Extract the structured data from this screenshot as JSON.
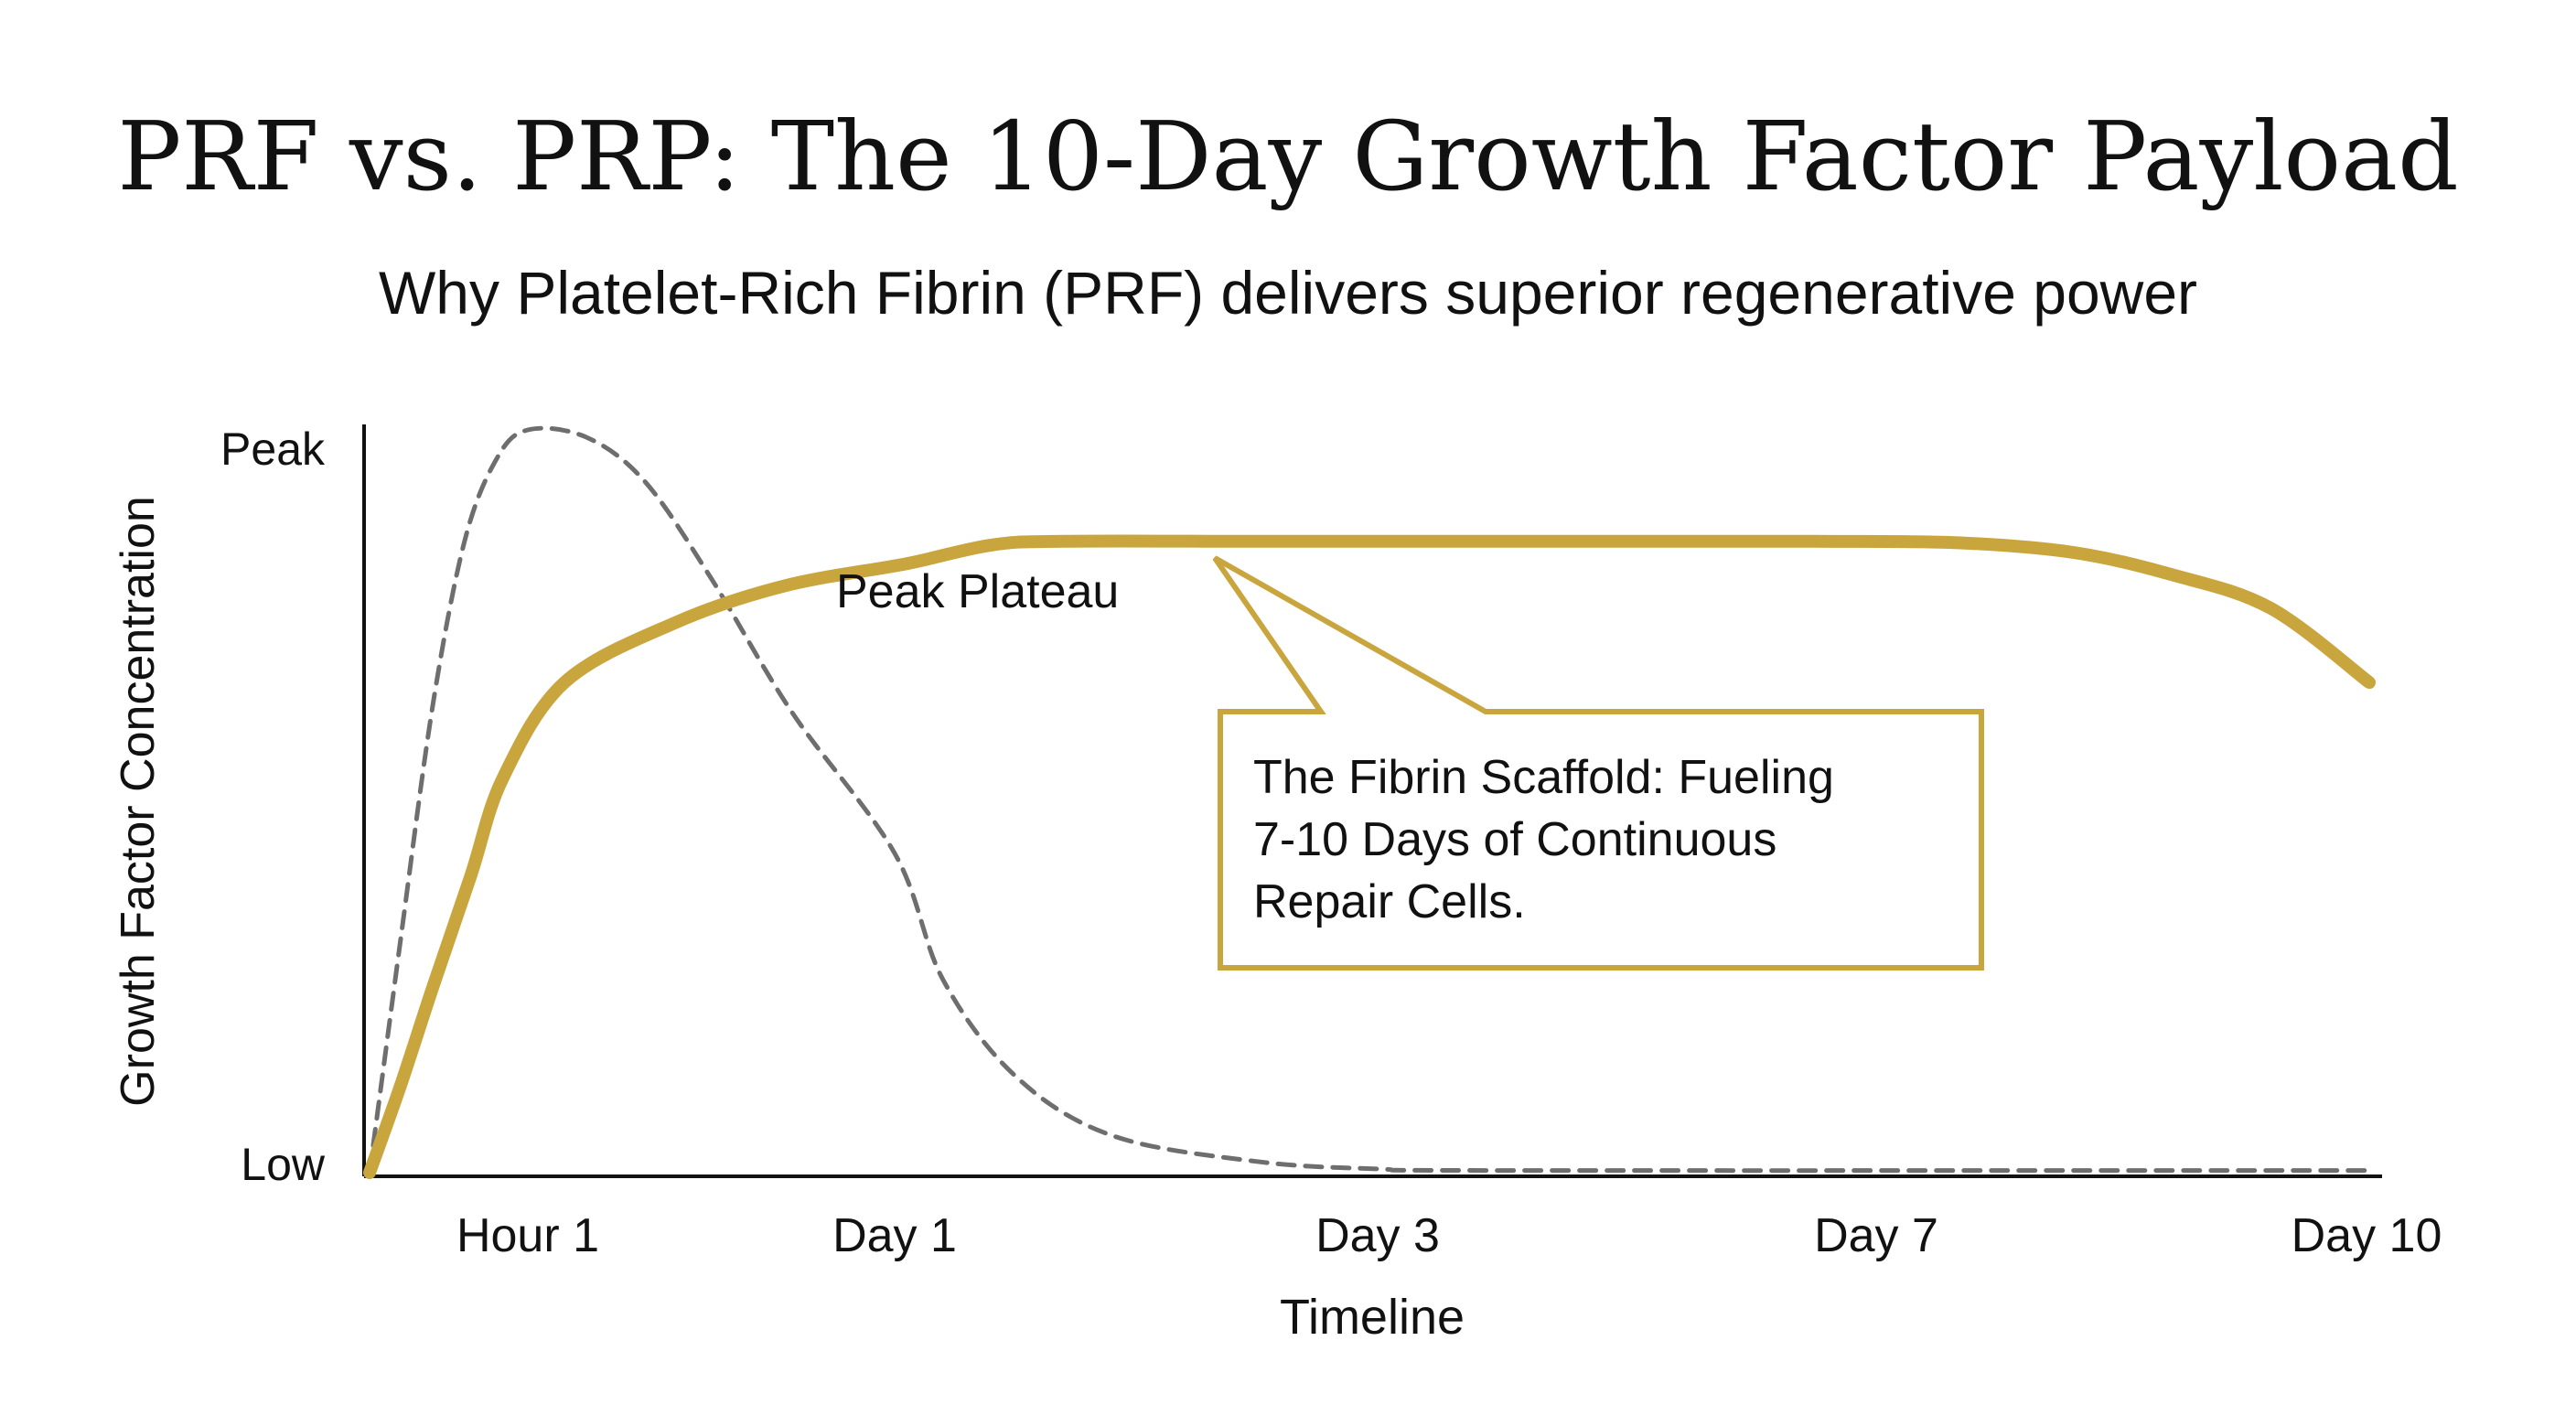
{
  "title": "PRF vs. PRP: The 10-Day Growth Factor Payload",
  "subtitle": "Why Platelet-Rich Fibrin (PRF) delivers superior regenerative power",
  "colors": {
    "prf": "#c9a53e",
    "prp": "#6e6e6e",
    "axis": "#111111",
    "text": "#111111"
  },
  "chart_data": {
    "type": "line",
    "title": "PRF vs. PRP: The 10-Day Growth Factor Payload",
    "subtitle": "Why Platelet-Rich Fibrin (PRF) delivers superior regenerative power",
    "xlabel": "Timeline",
    "ylabel": "Growth Factor Concentration",
    "x_ticks": [
      "Hour 1",
      "Day 1",
      "Day 3",
      "Day 7",
      "Day 10"
    ],
    "y_ticks": [
      "Low",
      "Peak"
    ],
    "ylim": [
      0,
      100
    ],
    "grid": false,
    "legend": "none",
    "series": [
      {
        "style": "solid",
        "color": "#c9a53e",
        "points": [
          [
            0,
            0
          ],
          [
            0.1,
            12
          ],
          [
            0.2,
            25
          ],
          [
            0.32,
            40
          ],
          [
            0.42,
            53
          ],
          [
            0.55,
            66
          ],
          [
            0.7,
            74
          ],
          [
            0.85,
            79
          ],
          [
            1.05,
            82
          ],
          [
            1.4,
            84.5
          ],
          [
            1.7,
            85
          ],
          [
            2.5,
            85
          ],
          [
            3.5,
            85
          ],
          [
            5,
            85
          ],
          [
            6.5,
            85
          ],
          [
            7.5,
            84.8
          ],
          [
            8.2,
            83.5
          ],
          [
            8.8,
            80.5
          ],
          [
            9.4,
            76
          ],
          [
            10,
            66
          ]
        ]
      },
      {
        "style": "dashed",
        "color": "#6e6e6e",
        "points": [
          [
            0,
            0
          ],
          [
            0.1,
            32
          ],
          [
            0.2,
            63
          ],
          [
            0.3,
            85
          ],
          [
            0.4,
            96
          ],
          [
            0.5,
            100
          ],
          [
            0.58,
            99
          ],
          [
            0.66,
            93
          ],
          [
            0.75,
            80
          ],
          [
            0.86,
            62
          ],
          [
            1,
            43
          ],
          [
            1.2,
            26
          ],
          [
            1.5,
            13
          ],
          [
            1.9,
            5
          ],
          [
            2.5,
            1.5
          ],
          [
            3,
            0.5
          ],
          [
            4,
            0.3
          ],
          [
            10,
            0.3
          ]
        ]
      }
    ],
    "annotations": [
      "Peak Plateau",
      "The Fibrin Scaffold: Fueling 7-10 Days of Continuous Repair Cells."
    ]
  },
  "annotations": {
    "plateau_label": "Peak Plateau",
    "callout_lines": [
      "The Fibrin Scaffold: Fueling",
      "7-10 Days of Continuous",
      "Repair Cells."
    ]
  }
}
